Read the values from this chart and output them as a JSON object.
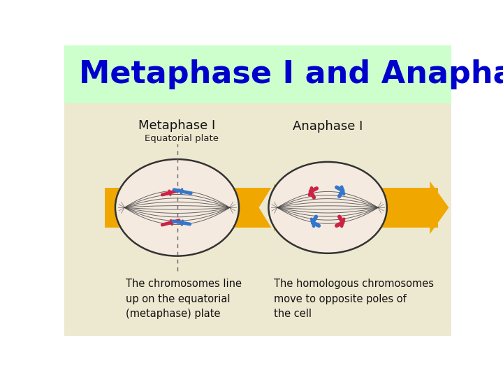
{
  "title": "Metaphase I and Anaphase I",
  "title_color": "#0000CC",
  "title_bg_color": "#CCFFCC",
  "diagram_bg_color": "#EDE8D0",
  "main_bg_color": "#FFFFFF",
  "arrow_color": "#F0A800",
  "cell_edge_color": "#333333",
  "cell_fill_color": "#F5EAE0",
  "spindle_color": "#444444",
  "chr_red": "#CC2244",
  "chr_blue": "#3377CC",
  "label_metaphase": "Metaphase I",
  "label_anaphase": "Anaphase I",
  "label_equatorial": "Equatorial plate",
  "caption_left": "The chromosomes line\nup on the equatorial\n(metaphase) plate",
  "caption_right": "The homologous chromosomes\nmove to opposite poles of\nthe cell",
  "title_fontsize": 32,
  "label_fontsize": 13,
  "caption_fontsize": 10.5
}
